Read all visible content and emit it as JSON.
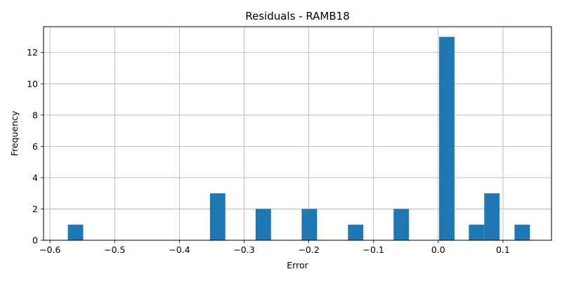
{
  "chart_data": {
    "type": "bar",
    "title": "Residuals - RAMB18",
    "xlabel": "Error",
    "ylabel": "Frequency",
    "xlim": [
      -0.61,
      0.175
    ],
    "ylim": [
      0,
      13.65
    ],
    "grid": true,
    "bar_color": "#1f77b4",
    "bin_width": 0.0238,
    "bins": [
      {
        "left": -0.5725,
        "count": 1
      },
      {
        "left": -0.3528,
        "count": 3
      },
      {
        "left": -0.2822,
        "count": 2
      },
      {
        "left": -0.2111,
        "count": 2
      },
      {
        "left": -0.1395,
        "count": 1
      },
      {
        "left": -0.069,
        "count": 2
      },
      {
        "left": 0.0014,
        "count": 13
      },
      {
        "left": 0.0473,
        "count": 1
      },
      {
        "left": 0.0711,
        "count": 3
      },
      {
        "left": 0.1179,
        "count": 1
      }
    ],
    "x_ticks": [
      {
        "value": -0.6,
        "label": "−0.6"
      },
      {
        "value": -0.5,
        "label": "−0.5"
      },
      {
        "value": -0.4,
        "label": "−0.4"
      },
      {
        "value": -0.3,
        "label": "−0.3"
      },
      {
        "value": -0.2,
        "label": "−0.2"
      },
      {
        "value": -0.1,
        "label": "−0.1"
      },
      {
        "value": 0.0,
        "label": "0.0"
      },
      {
        "value": 0.1,
        "label": "0.1"
      }
    ],
    "y_ticks": [
      {
        "value": 0,
        "label": "0"
      },
      {
        "value": 2,
        "label": "2"
      },
      {
        "value": 4,
        "label": "4"
      },
      {
        "value": 6,
        "label": "6"
      },
      {
        "value": 8,
        "label": "8"
      },
      {
        "value": 10,
        "label": "10"
      },
      {
        "value": 12,
        "label": "12"
      }
    ]
  }
}
